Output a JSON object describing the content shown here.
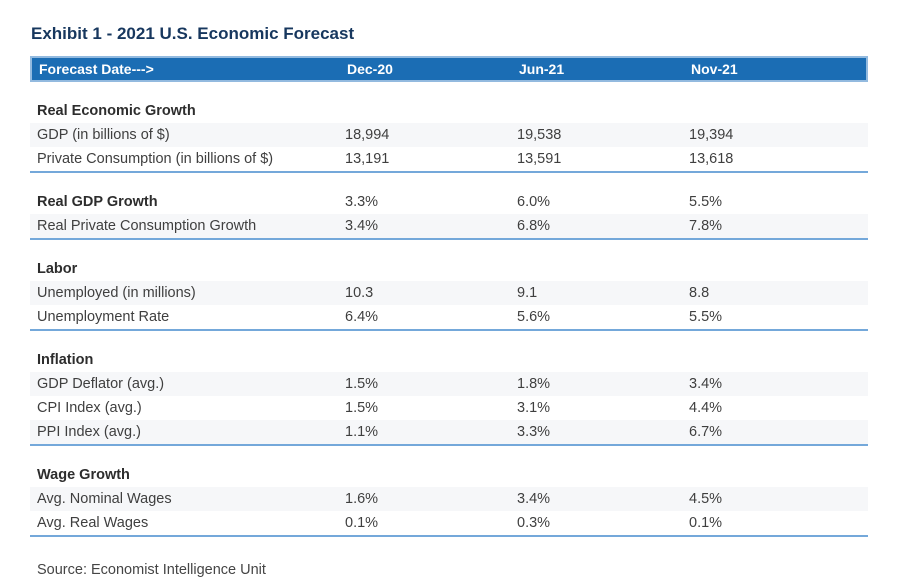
{
  "chart_data": {
    "type": "table",
    "title": "Exhibit 1 - 2021 U.S. Economic Forecast",
    "source": "Source: Economist Intelligence Unit",
    "header": {
      "label": "Forecast Date--->",
      "columns": [
        "Dec-20",
        "Jun-21",
        "Nov-21"
      ]
    },
    "sections": [
      {
        "heading": "Real Economic Growth",
        "rows": [
          {
            "label": "GDP (in billions of $)",
            "values": [
              "18,994",
              "19,538",
              "19,394"
            ]
          },
          {
            "label": "Private Consumption (in billions of $)",
            "values": [
              "13,191",
              "13,591",
              "13,618"
            ]
          }
        ]
      },
      {
        "heading": "Real GDP Growth",
        "heading_values": [
          "3.3%",
          "6.0%",
          "5.5%"
        ],
        "rows": [
          {
            "label": "Real Private Consumption Growth",
            "values": [
              "3.4%",
              "6.8%",
              "7.8%"
            ]
          }
        ]
      },
      {
        "heading": "Labor",
        "rows": [
          {
            "label": "Unemployed (in millions)",
            "values": [
              "10.3",
              "9.1",
              "8.8"
            ]
          },
          {
            "label": "Unemployment Rate",
            "values": [
              "6.4%",
              "5.6%",
              "5.5%"
            ]
          }
        ]
      },
      {
        "heading": "Inflation",
        "rows": [
          {
            "label": "GDP Deflator (avg.)",
            "values": [
              "1.5%",
              "1.8%",
              "3.4%"
            ]
          },
          {
            "label": "CPI Index (avg.)",
            "values": [
              "1.5%",
              "3.1%",
              "4.4%"
            ]
          },
          {
            "label": "PPI Index (avg.)",
            "values": [
              "1.1%",
              "3.3%",
              "6.7%"
            ]
          }
        ]
      },
      {
        "heading": "Wage Growth",
        "rows": [
          {
            "label": "Avg. Nominal Wages",
            "values": [
              "1.6%",
              "3.4%",
              "4.5%"
            ]
          },
          {
            "label": "Avg. Real Wages",
            "values": [
              "0.1%",
              "0.3%",
              "0.1%"
            ]
          }
        ]
      }
    ]
  },
  "colors": {
    "header_bg": "#1b6db4",
    "header_border": "#93badf",
    "header_text": "#ffffff",
    "title_text": "#17375e",
    "section_separator": "#74a8da",
    "shaded_row_bg": "#f6f7f9",
    "body_text": "#3f3f3f"
  }
}
